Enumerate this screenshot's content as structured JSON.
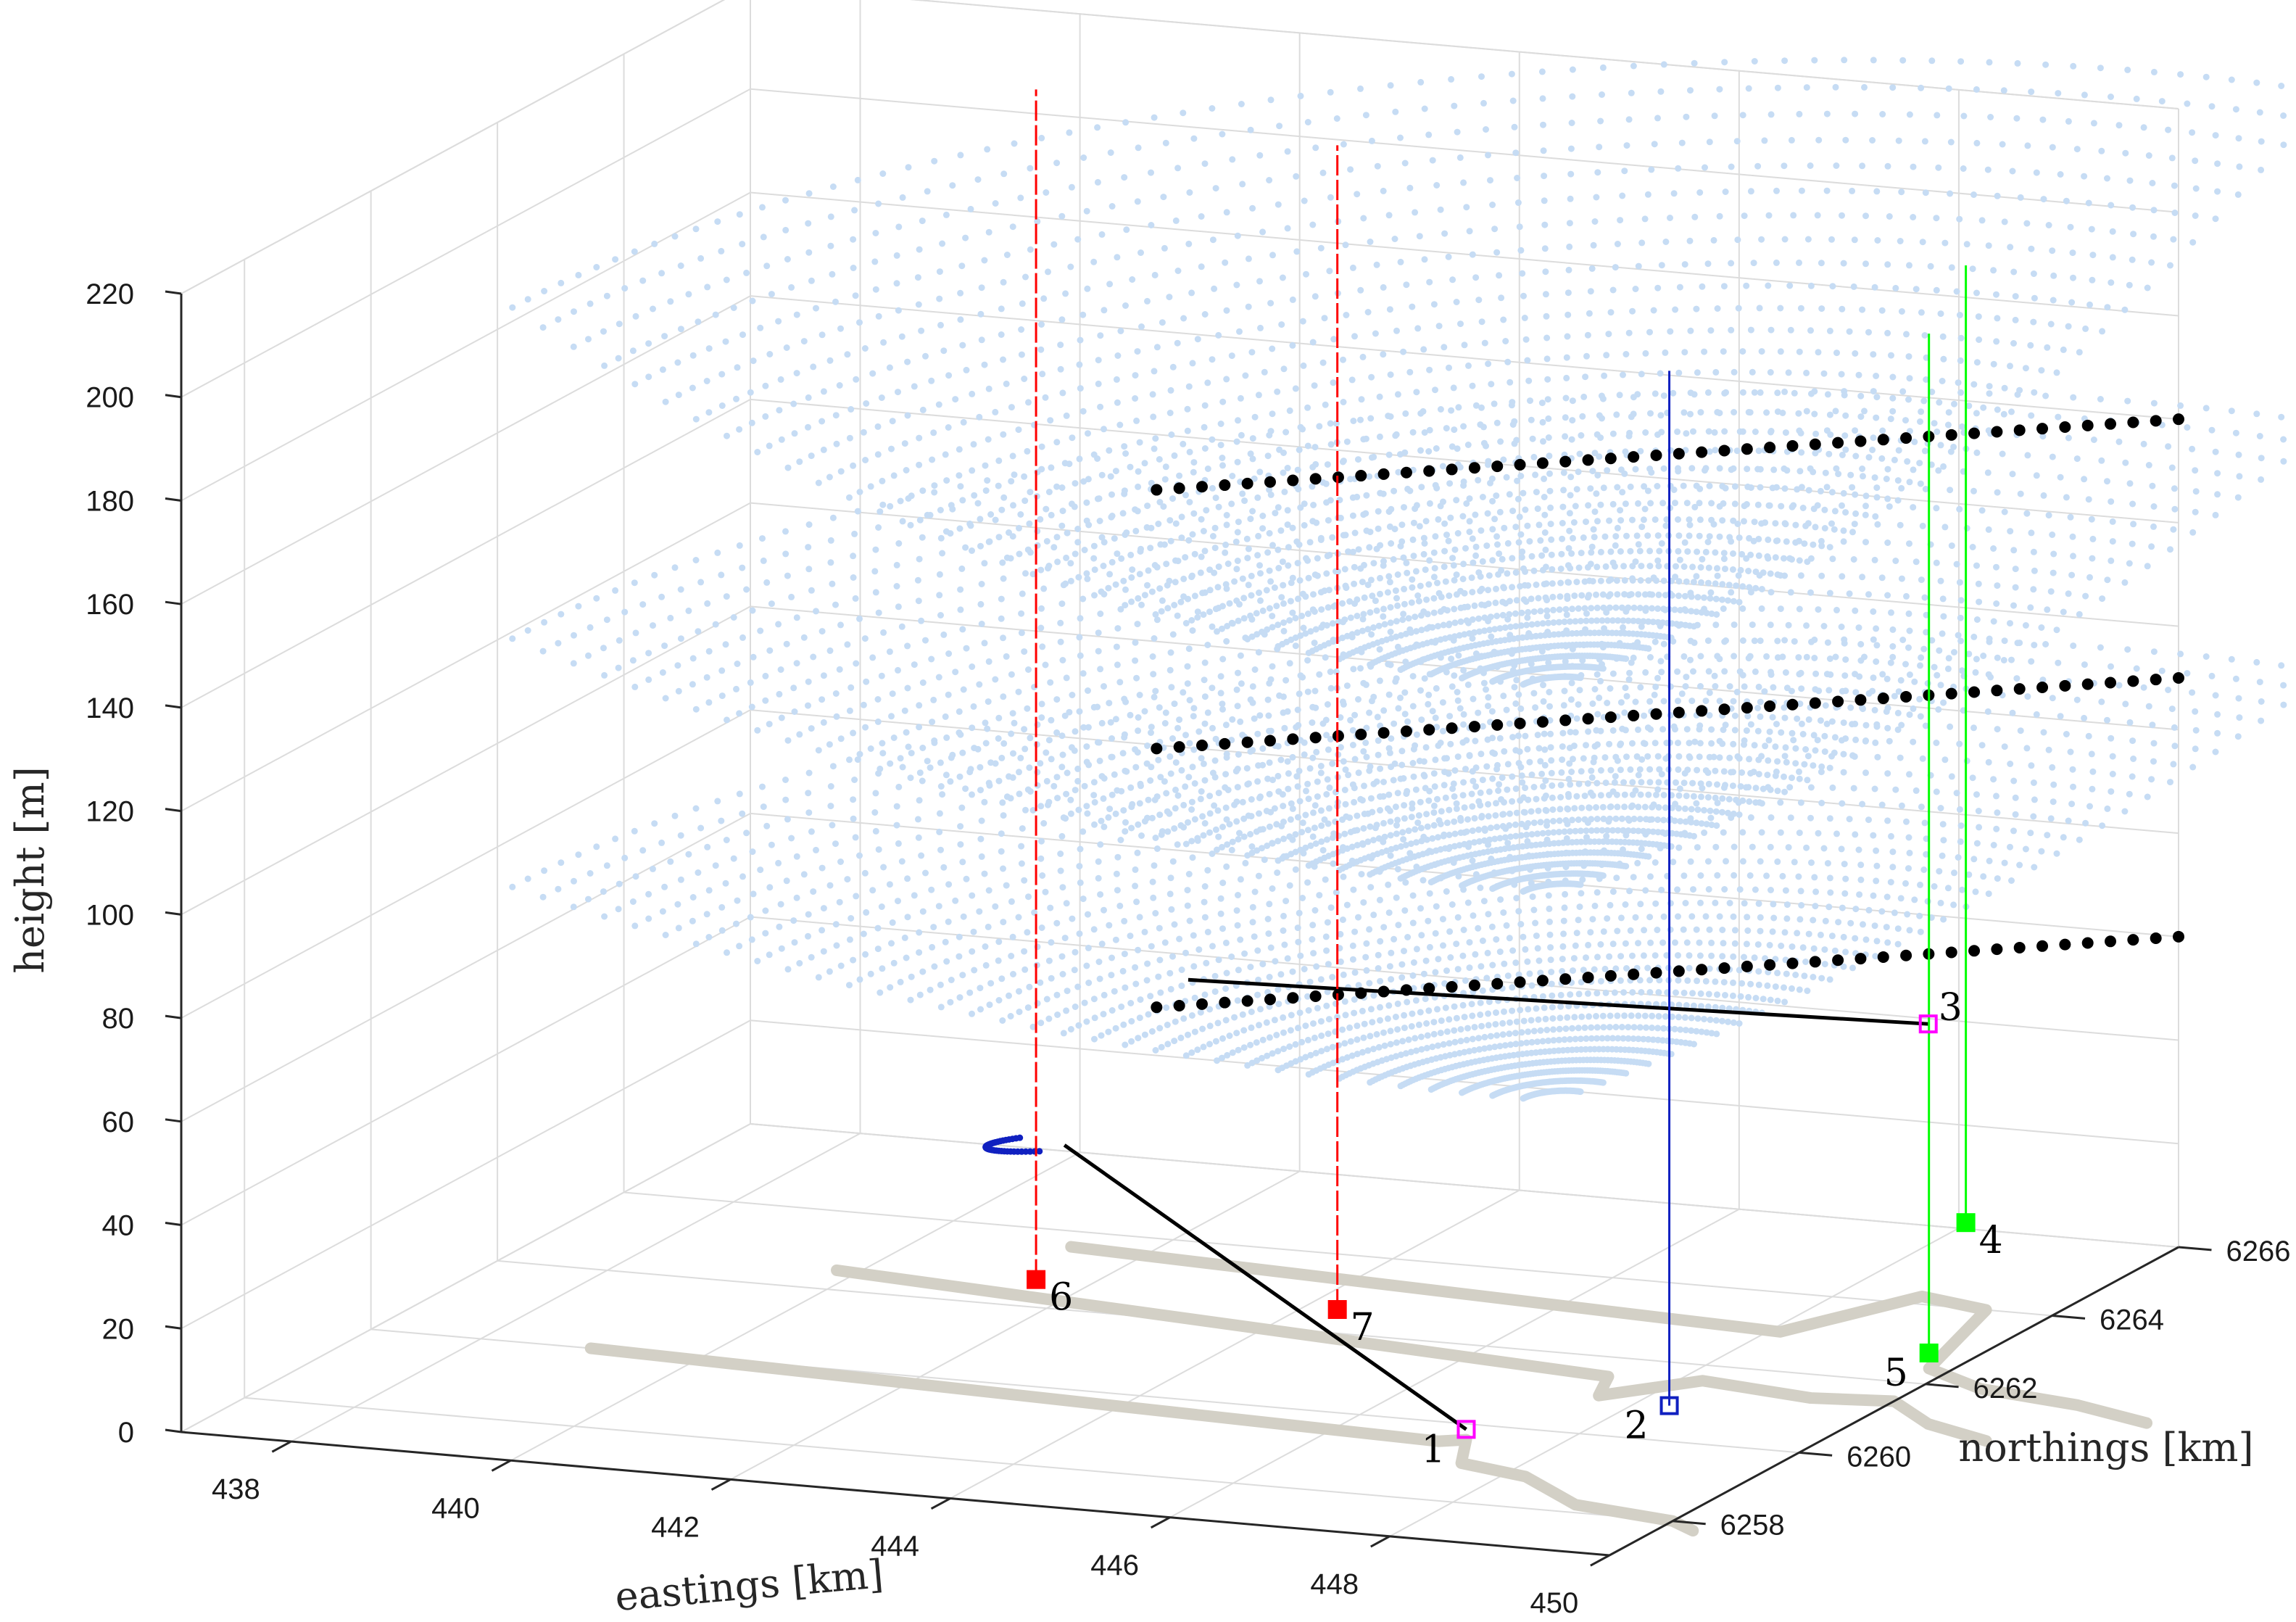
{
  "chart_data": {
    "type": "scatter",
    "dimensions": 3,
    "xlabel": "eastings [km]",
    "ylabel": "northings [km]",
    "zlabel": "height [m]",
    "xlim": [
      437,
      450
    ],
    "ylim": [
      6257,
      6266
    ],
    "zlim": [
      0,
      220
    ],
    "x_ticks": [
      "438",
      "440",
      "442",
      "444",
      "446",
      "448",
      "450"
    ],
    "y_ticks": [
      "6258",
      "6260",
      "6262",
      "6264",
      "6266"
    ],
    "z_ticks": [
      "0",
      "20",
      "40",
      "60",
      "80",
      "100",
      "120",
      "140",
      "160",
      "180",
      "200",
      "220"
    ],
    "grid": true,
    "colors": {
      "cone": "#c6dcf4",
      "track": "#d3d0c6",
      "black": "#000000",
      "blue": "#1020c0",
      "red": "#ff0000",
      "green": "#00ff00",
      "magenta": "#ff00ff",
      "grid": "#dcdcdc"
    },
    "scan_cones": {
      "apex": [
        447.5,
        6260.5
      ],
      "azimuth_deg": [
        80,
        180
      ],
      "range_km": [
        0.3,
        9.5
      ],
      "base_heights": [
        60,
        100,
        140
      ],
      "top_heights": [
        90,
        140,
        210
      ],
      "color": "#c6dcf4"
    },
    "black_lines": [
      {
        "height": 60,
        "from": [
          443,
          6262
        ],
        "to": [
          450,
          6266
        ],
        "points": 46
      },
      {
        "height": 110,
        "from": [
          443,
          6262
        ],
        "to": [
          450,
          6266
        ],
        "points": 46
      },
      {
        "height": 160,
        "from": [
          443,
          6262
        ],
        "to": [
          450,
          6266
        ],
        "points": 46
      }
    ],
    "connector_lines": [
      {
        "from": [
          443.6,
          6259.5,
          51
        ],
        "to": [
          447.2,
          6259.6,
          2
        ]
      },
      {
        "from": [
          443.0,
          6262.5,
          62
        ],
        "to": [
          448.7,
          6264.3,
          52
        ]
      }
    ],
    "blue_arc": {
      "center": [
        447.5,
        6260.5
      ],
      "radius_km": 4.5,
      "az_deg": [
        190,
        235
      ],
      "height": [
        50,
        70
      ]
    },
    "vertical_lines": [
      {
        "label": "2",
        "x": 448.3,
        "y": 6260.9,
        "z": [
          0,
          200
        ],
        "color": "#1020c0",
        "marker": "open-square",
        "style": "solid"
      },
      {
        "label": "4",
        "x": 449.1,
        "y": 6264.2,
        "z": [
          15,
          200
        ],
        "color": "#00ff00",
        "marker": "filled-square",
        "style": "solid"
      },
      {
        "label": "5",
        "x": 449.8,
        "y": 6262.4,
        "z": [
          3,
          200
        ],
        "color": "#00ff00",
        "marker": "filled-square",
        "style": "solid"
      },
      {
        "label": "6",
        "x": 441.5,
        "y": 6262.7,
        "z": [
          0,
          230
        ],
        "color": "#ff0000",
        "marker": "filled-square",
        "style": "dashed"
      },
      {
        "label": "7",
        "x": 444.3,
        "y": 6262.6,
        "z": [
          0,
          225
        ],
        "color": "#ff0000",
        "marker": "filled-square",
        "style": "dashed"
      }
    ],
    "markers": [
      {
        "label": "1",
        "x": 447.2,
        "y": 6259.6,
        "z": 2,
        "color": "#ff00ff",
        "shape": "open-square"
      },
      {
        "label": "3",
        "x": 448.7,
        "y": 6264.3,
        "z": 52,
        "color": "#ff00ff",
        "shape": "open-square"
      }
    ],
    "tracks": [
      {
        "points": [
          [
            439,
            6260
          ],
          [
            447.0,
            6259.5
          ],
          [
            447.2,
            6259.6
          ],
          [
            447.5,
            6259.0
          ],
          [
            448.2,
            6258.8
          ],
          [
            449.0,
            6258.2
          ],
          [
            450,
            6258.0
          ],
          [
            450.3,
            6257.8
          ]
        ]
      },
      {
        "points": [
          [
            439.8,
            6262.5
          ],
          [
            447.4,
            6261.5
          ],
          [
            447.6,
            6261.0
          ],
          [
            448.2,
            6261.6
          ],
          [
            449.3,
            6261.4
          ],
          [
            450.0,
            6261.5
          ],
          [
            450.6,
            6261.0
          ],
          [
            451.3,
            6260.7
          ]
        ]
      },
      {
        "points": [
          [
            441.3,
            6263.6
          ],
          [
            448.1,
            6263.0
          ],
          [
            448.3,
            6263.4
          ],
          [
            448.7,
            6264.2
          ],
          [
            449.4,
            6264.0
          ],
          [
            449.8,
            6262.4
          ],
          [
            450.5,
            6262.0
          ],
          [
            451.5,
            6261.8
          ],
          [
            452.3,
            6261.5
          ]
        ]
      }
    ]
  }
}
